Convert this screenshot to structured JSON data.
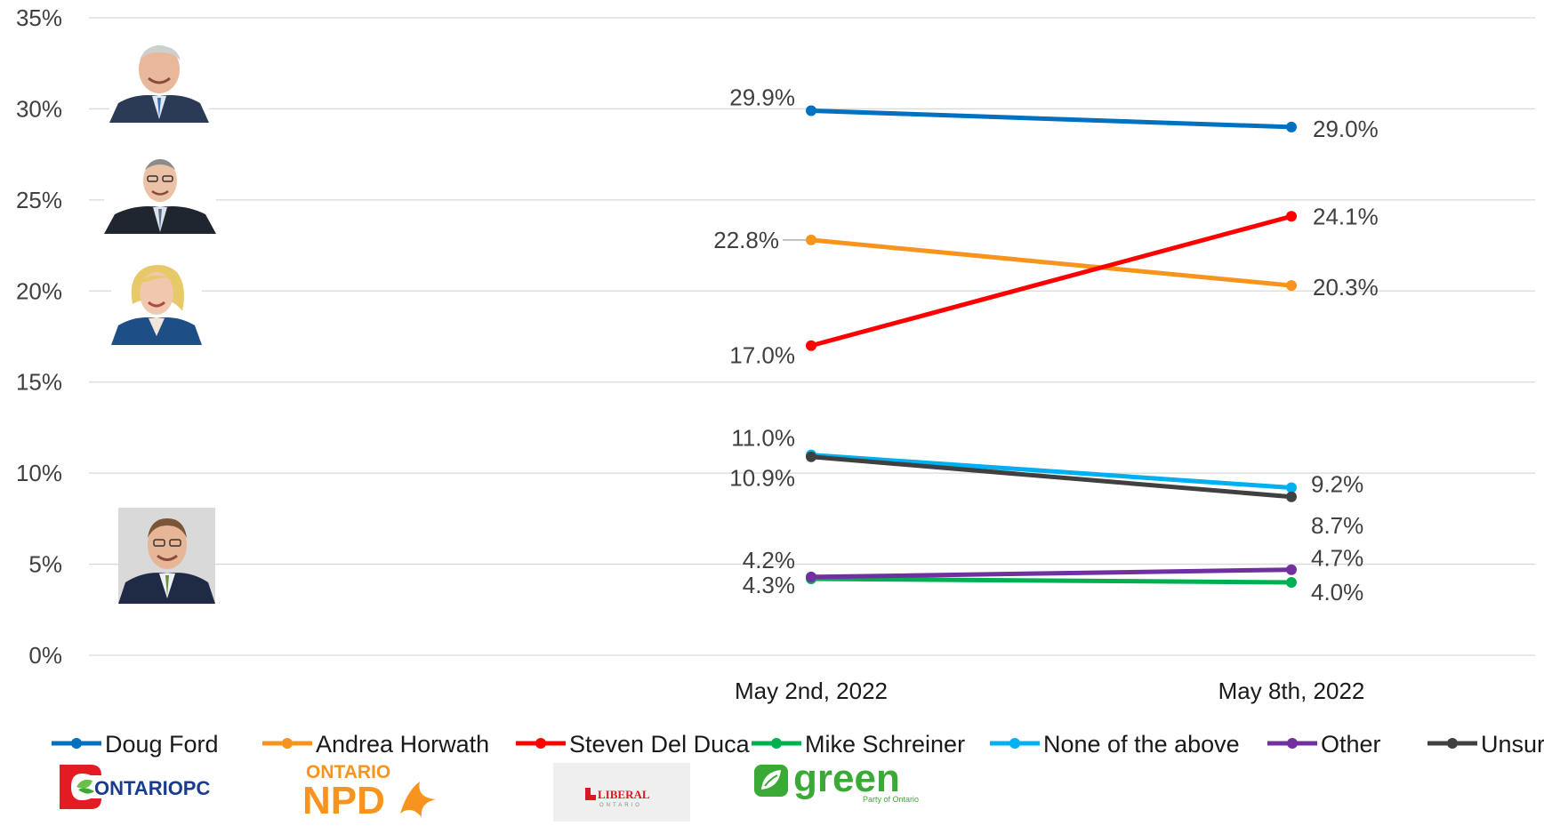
{
  "chart_data": {
    "type": "line",
    "categories": [
      "May 2nd, 2022",
      "May 8th, 2022"
    ],
    "ylim": [
      0,
      35
    ],
    "yticks": [
      0,
      5,
      10,
      15,
      20,
      25,
      30,
      35
    ],
    "ytick_labels": [
      "0%",
      "5%",
      "10%",
      "15%",
      "20%",
      "25%",
      "30%",
      "35%"
    ],
    "grid": true,
    "legend_position": "bottom",
    "series": [
      {
        "name": "Doug Ford",
        "color": "#0070C0",
        "values": [
          29.9,
          29.0
        ],
        "labels": [
          "29.9%",
          "29.0%"
        ]
      },
      {
        "name": "Andrea Horwath",
        "color": "#F7941D",
        "values": [
          22.8,
          20.3
        ],
        "labels": [
          "22.8%",
          "20.3%"
        ]
      },
      {
        "name": "Steven Del Duca",
        "color": "#FF0000",
        "values": [
          17.0,
          24.1
        ],
        "labels": [
          "17.0%",
          "24.1%"
        ]
      },
      {
        "name": "Mike Schreiner",
        "color": "#00B050",
        "values": [
          4.2,
          4.0
        ],
        "labels": [
          "4.2%",
          "4.0%"
        ]
      },
      {
        "name": "None of the above",
        "color": "#00B0F0",
        "values": [
          11.0,
          9.2
        ],
        "labels": [
          "11.0%",
          "9.2%"
        ]
      },
      {
        "name": "Other",
        "color": "#7030A0",
        "values": [
          4.3,
          4.7
        ],
        "labels": [
          "4.3%",
          "4.7%"
        ]
      },
      {
        "name": "Unsure",
        "color": "#404040",
        "values": [
          10.9,
          8.7
        ],
        "labels": [
          "10.9%",
          "8.7%"
        ]
      }
    ]
  },
  "logos": {
    "pc": {
      "text": "ONTARIOPC",
      "color": "#1a3c8c",
      "accent": "#e31b23"
    },
    "npd": {
      "top": "ONTARIO",
      "bottom": "NPD",
      "color": "#f7941d"
    },
    "liberal": {
      "text": "LIBERAL",
      "sub": "ONTARIO",
      "color": "#d71920"
    },
    "green": {
      "text": "green",
      "sub": "Party of Ontario",
      "color": "#3aa935"
    }
  }
}
